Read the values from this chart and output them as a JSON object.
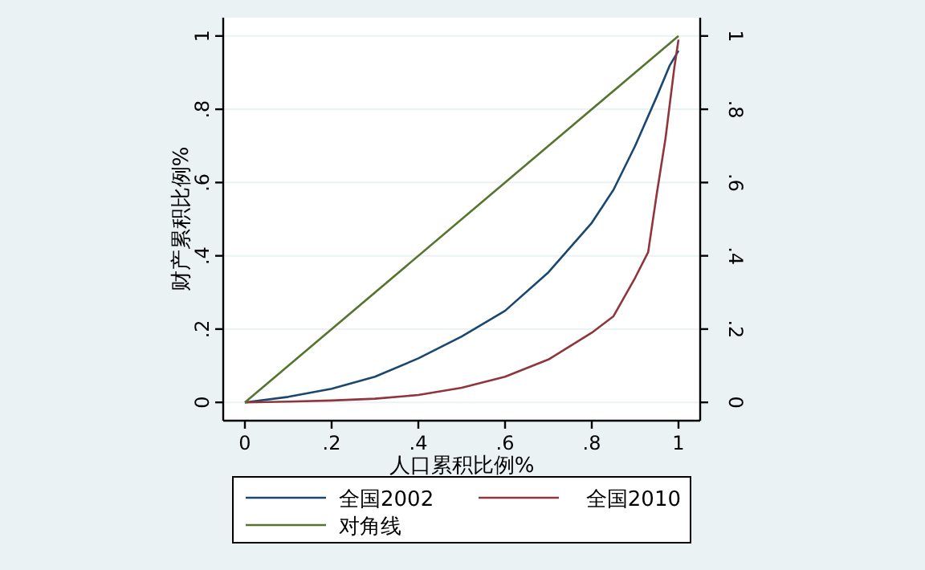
{
  "chart_data": {
    "type": "line",
    "xlabel": "人口累积比例%",
    "ylabel": "财产累积比例%",
    "xlim": [
      -0.05,
      1.05
    ],
    "ylim": [
      -0.05,
      1.05
    ],
    "y2lim": [
      -0.05,
      1.05
    ],
    "xticks": [
      0,
      {
        "value": 0.2,
        "label": ".2"
      },
      {
        "value": 0.4,
        "label": ".4"
      },
      {
        "value": 0.6,
        "label": ".6"
      },
      {
        "value": 0.8,
        "label": ".8"
      },
      1
    ],
    "yticks": [
      0,
      {
        "value": 0.2,
        "label": ".2"
      },
      {
        "value": 0.4,
        "label": ".4"
      },
      {
        "value": 0.6,
        "label": ".6"
      },
      {
        "value": 0.8,
        "label": ".8"
      },
      1
    ],
    "y2ticks": [
      0,
      {
        "value": 0.2,
        "label": ".2"
      },
      {
        "value": 0.4,
        "label": ".4"
      },
      {
        "value": 0.6,
        "label": ".6"
      },
      {
        "value": 0.8,
        "label": ".8"
      },
      1
    ],
    "grid": "y",
    "legend": "bottom",
    "marker": "none",
    "line_style": "solid",
    "series": [
      {
        "name": "全国2002",
        "color": "#1a476f",
        "x": [
          0,
          0.1,
          0.2,
          0.3,
          0.4,
          0.5,
          0.6,
          0.7,
          0.8,
          0.85,
          0.9,
          0.95,
          0.98,
          1
        ],
        "values": [
          0,
          0.015,
          0.037,
          0.07,
          0.12,
          0.18,
          0.25,
          0.355,
          0.49,
          0.58,
          0.7,
          0.835,
          0.92,
          0.96
        ]
      },
      {
        "name": "全国2010",
        "color": "#90353b",
        "x": [
          0,
          0.1,
          0.2,
          0.3,
          0.4,
          0.5,
          0.6,
          0.7,
          0.8,
          0.85,
          0.9,
          0.93,
          0.95,
          0.97,
          0.99,
          1
        ],
        "values": [
          0,
          0.002,
          0.005,
          0.01,
          0.02,
          0.04,
          0.07,
          0.117,
          0.19,
          0.235,
          0.34,
          0.41,
          0.57,
          0.72,
          0.91,
          0.99
        ]
      },
      {
        "name": "对角线",
        "color": "#55752f",
        "x": [
          0,
          1
        ],
        "values": [
          0,
          1
        ]
      }
    ]
  }
}
